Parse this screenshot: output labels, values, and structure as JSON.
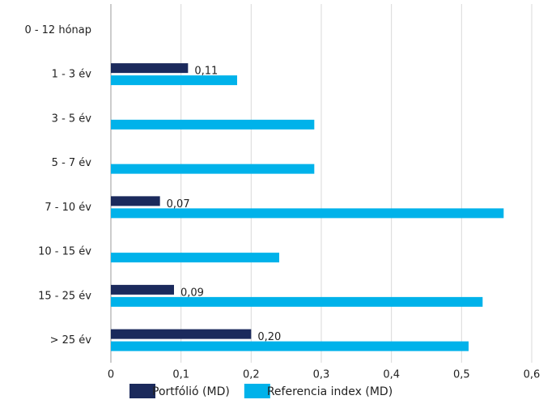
{
  "chart_data": {
    "type": "bar",
    "orientation": "horizontal",
    "categories": [
      "0 - 12 hónap",
      "1 - 3 év",
      "3 - 5 év",
      "5 - 7 év",
      "7 - 10 év",
      "10 - 15 év",
      "15 - 25 év",
      "> 25 év"
    ],
    "series": [
      {
        "name": "Portfólió (MD)",
        "color": "#1b2a5c",
        "values": [
          null,
          0.11,
          null,
          null,
          0.07,
          null,
          0.09,
          0.2
        ],
        "value_labels": [
          null,
          "0,11",
          null,
          null,
          "0,07",
          null,
          "0,09",
          "0,20"
        ]
      },
      {
        "name": "Referencia index (MD)",
        "color": "#00b2ea",
        "values": [
          null,
          0.18,
          0.29,
          0.29,
          0.56,
          0.24,
          0.53,
          0.51
        ]
      }
    ],
    "xlim": [
      0,
      0.6
    ],
    "xticks": [
      0,
      {
        "value": 0.1,
        "label": "0,1"
      },
      {
        "value": 0.2,
        "label": "0,2"
      },
      {
        "value": 0.3,
        "label": "0,3"
      },
      {
        "value": 0.4,
        "label": "0,4"
      },
      {
        "value": 0.5,
        "label": "0,5"
      },
      {
        "value": 0.6,
        "label": "0,6"
      }
    ],
    "grid": true,
    "legend": "bottom"
  }
}
